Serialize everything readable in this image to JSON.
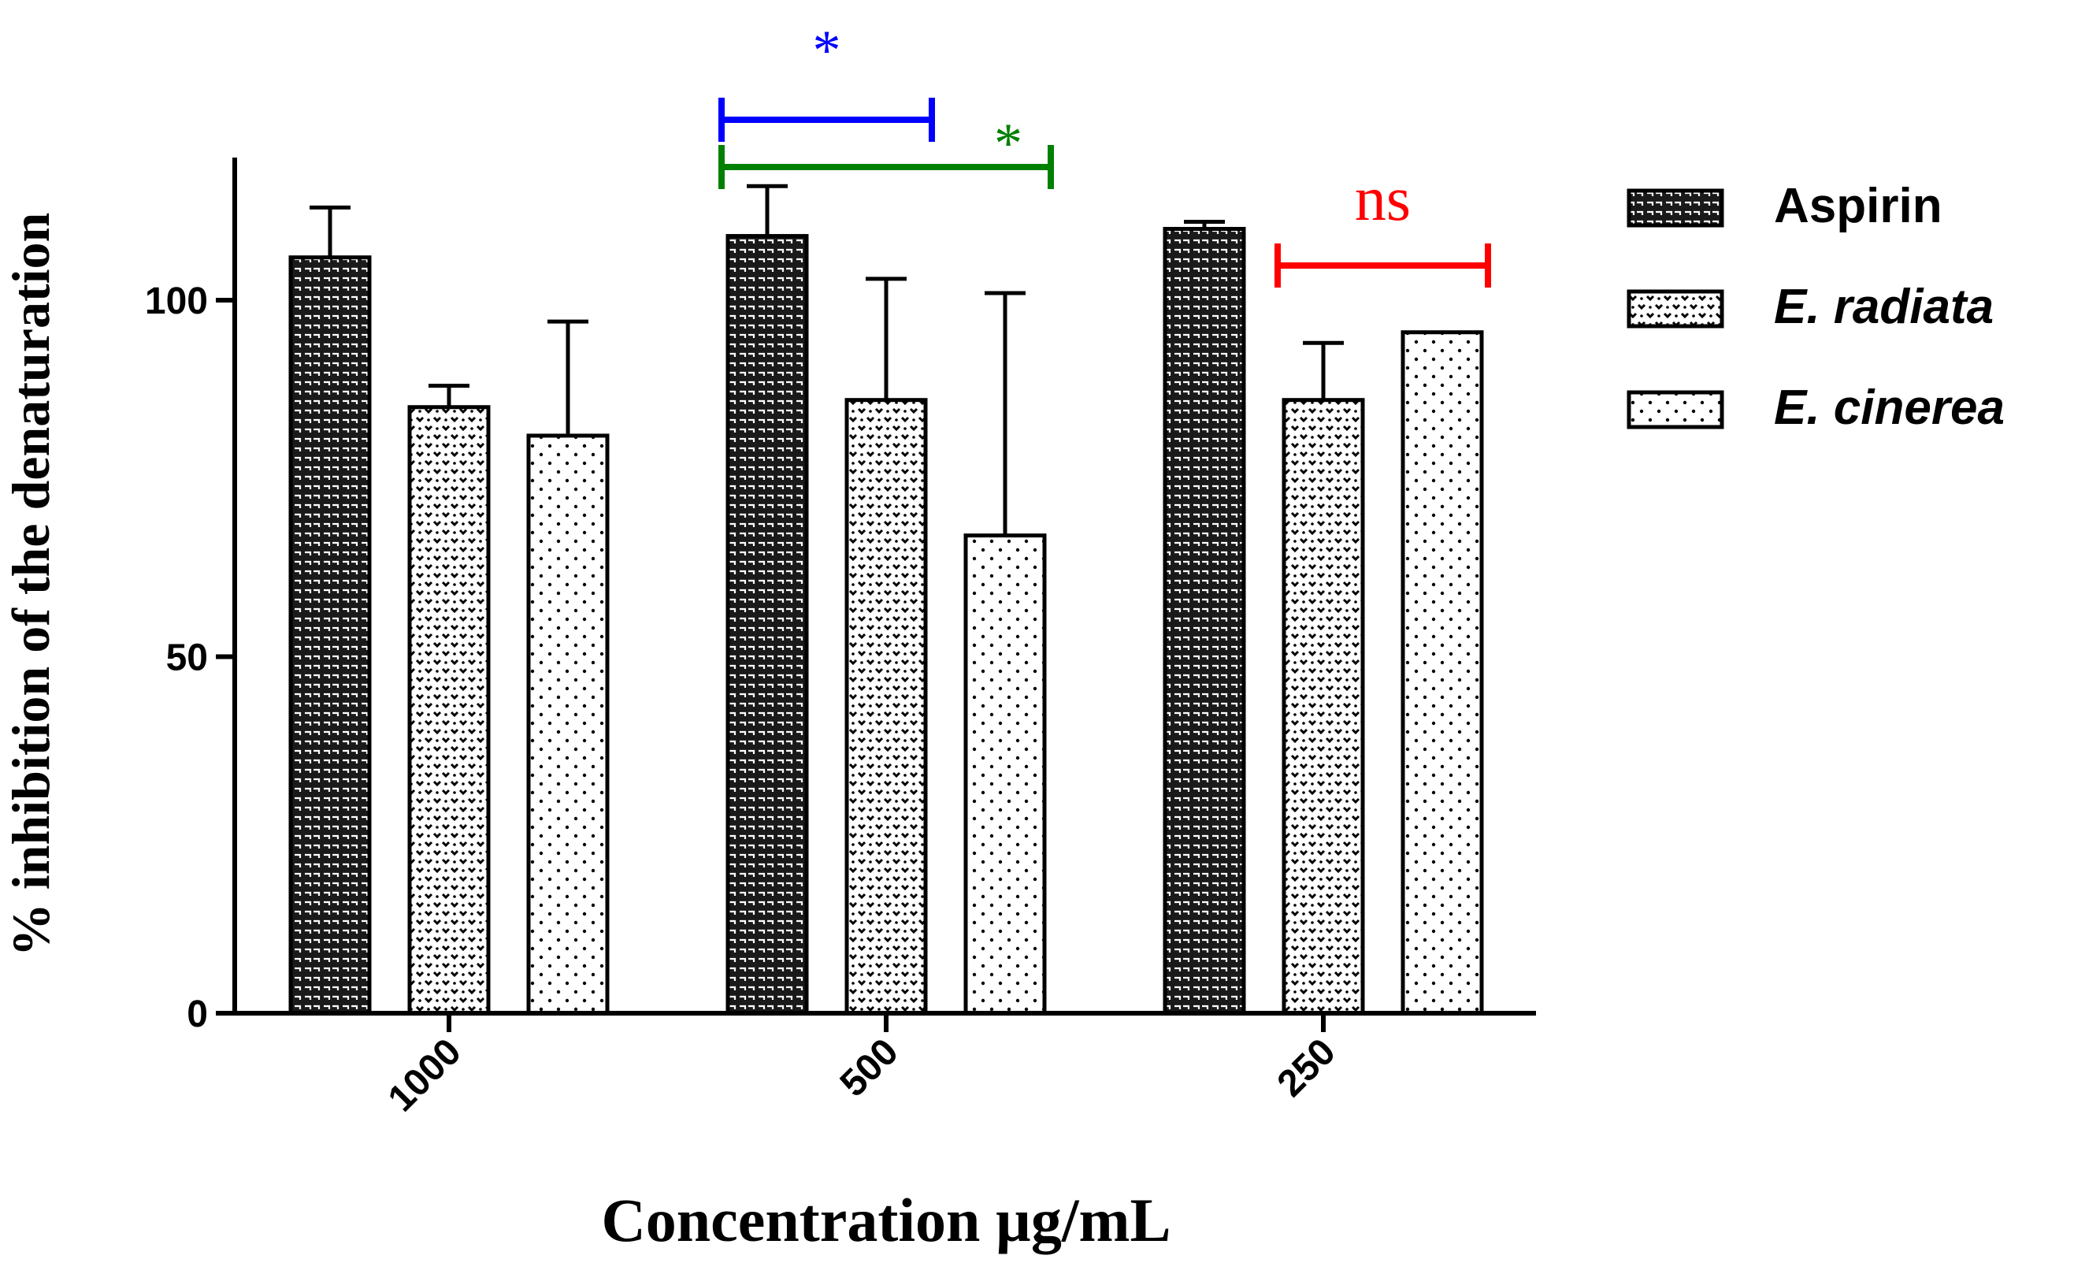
{
  "chart_data": {
    "type": "bar",
    "categories": [
      "1000",
      "500",
      "250"
    ],
    "series": [
      {
        "name": "Aspirin",
        "italic": false,
        "pattern": "aspirin",
        "values": [
          106,
          109,
          110
        ],
        "errors": [
          7,
          7,
          1
        ]
      },
      {
        "name": "E. radiata",
        "italic": true,
        "pattern": "radiata",
        "values": [
          85,
          86,
          86
        ],
        "errors": [
          3,
          17,
          8
        ]
      },
      {
        "name": "E. cinerea",
        "italic": true,
        "pattern": "cinerea",
        "values": [
          81,
          67,
          95.5
        ],
        "errors": [
          16,
          34,
          0
        ]
      }
    ],
    "xlabel": "Concentration µg/mL",
    "ylabel": "% inhibition of the denaturation",
    "ylim": [
      0,
      120
    ],
    "yticks": [
      "0",
      "50",
      "100"
    ],
    "grid": false,
    "legend": "right",
    "annotations": [
      {
        "label": "*",
        "color": "#0000ff",
        "from_category": "500",
        "from_series": 0,
        "to_category": "500",
        "to_series": 1
      },
      {
        "label": "*",
        "color": "#008000",
        "from_category": "500",
        "from_series": 0,
        "to_category": "500",
        "to_series": 2
      },
      {
        "label": "ns",
        "color": "#ff0000",
        "from_category": "250",
        "from_series": 1,
        "to_category": "250",
        "to_series": 2
      }
    ]
  }
}
